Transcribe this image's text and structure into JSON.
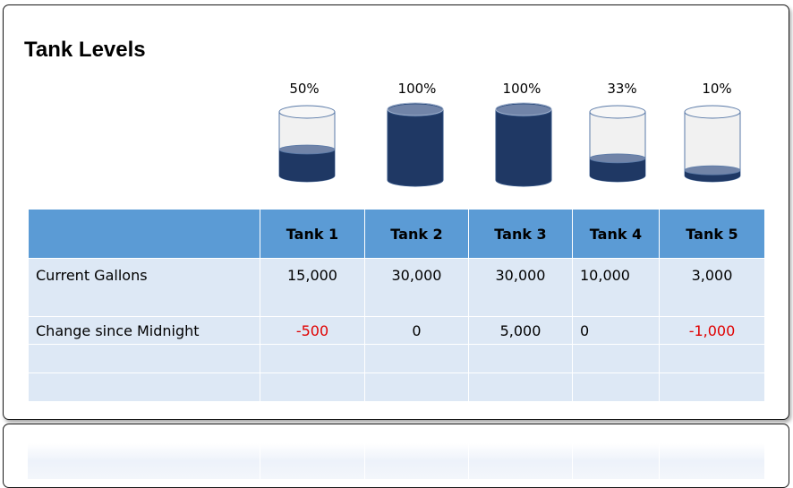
{
  "title": "Tank Levels",
  "tanks": [
    {
      "name": "Tank 1",
      "percent_label": "50%",
      "level": 0.5,
      "gallons": "15,000",
      "change": "-500"
    },
    {
      "name": "Tank 2",
      "percent_label": "100%",
      "level": 1.0,
      "gallons": "30,000",
      "change": "0"
    },
    {
      "name": "Tank 3",
      "percent_label": "100%",
      "level": 1.0,
      "gallons": "30,000",
      "change": "5,000"
    },
    {
      "name": "Tank 4",
      "percent_label": "33%",
      "level": 0.33,
      "gallons": "10,000",
      "change": "0"
    },
    {
      "name": "Tank 5",
      "percent_label": "10%",
      "level": 0.1,
      "gallons": "3,000",
      "change": "-1,000"
    }
  ],
  "rows": {
    "current_gallons": "Current Gallons",
    "change_since_midnight": "Change since Midnight"
  },
  "colors": {
    "header": "#5b9bd5",
    "cell": "#dde8f5",
    "liquid": "#1f3864",
    "negative": "#e00000"
  }
}
